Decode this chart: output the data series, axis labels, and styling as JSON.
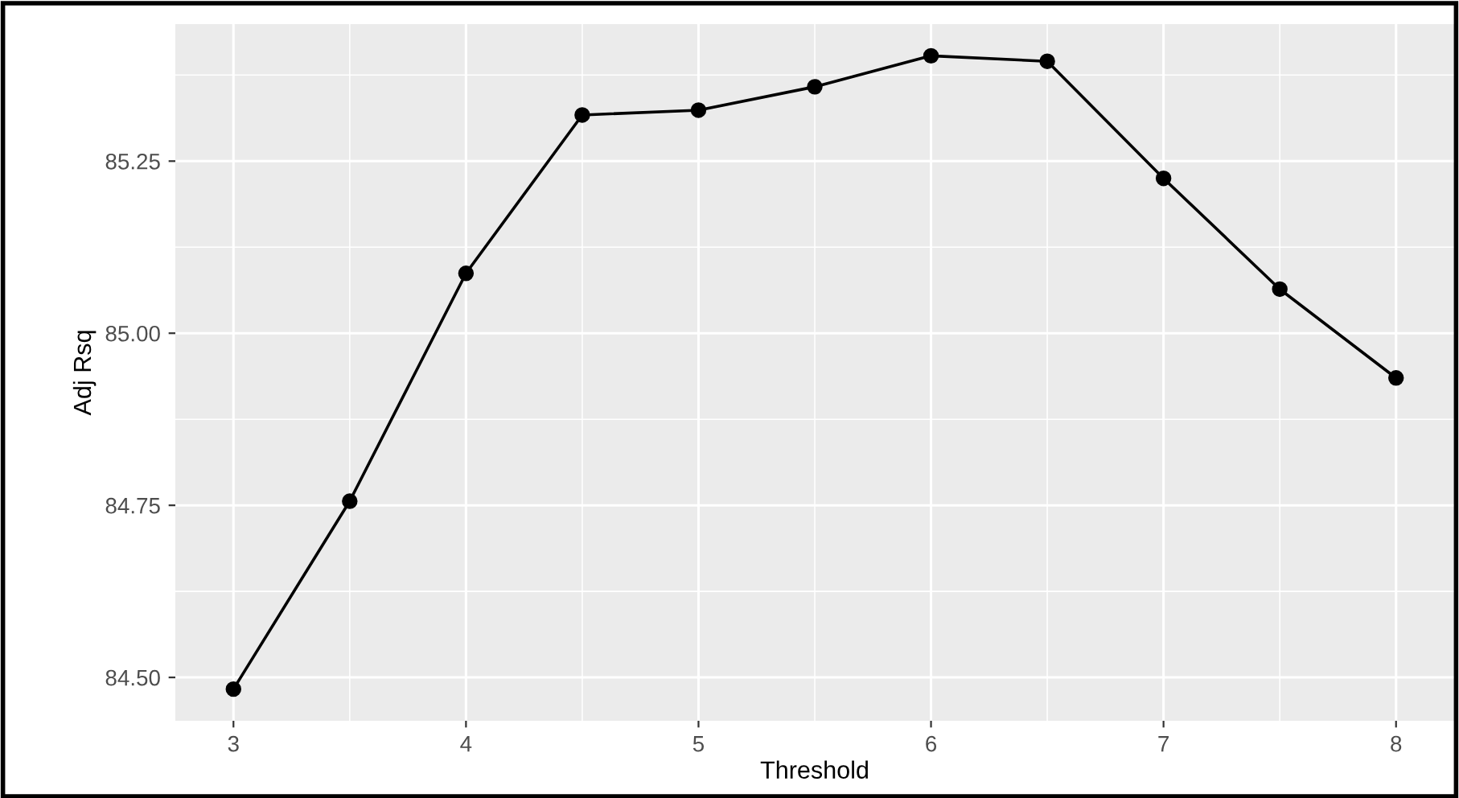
{
  "chart_data": {
    "type": "line",
    "xlabel": "Threshold",
    "ylabel": "Adj Rsq",
    "x": [
      3,
      3.5,
      4,
      4.5,
      5,
      5.5,
      6,
      6.5,
      7,
      7.5,
      8
    ],
    "series": [
      {
        "color": "#000000",
        "values": [
          84.483,
          84.756,
          85.087,
          85.317,
          85.324,
          85.358,
          85.403,
          85.395,
          85.225,
          85.064,
          84.935
        ]
      }
    ],
    "xlim": [
      2.75,
      8.25
    ],
    "ylim": [
      84.437,
      85.449
    ],
    "xticks": [
      3,
      {
        "value": 3.5,
        "label": null
      },
      4,
      {
        "value": 4.5,
        "label": null
      },
      5,
      {
        "value": 5.5,
        "label": null
      },
      6,
      {
        "value": 6.5,
        "label": null
      },
      7,
      {
        "value": 7.5,
        "label": null
      },
      8
    ],
    "yticks": [
      {
        "value": 84.5,
        "label": "84.50"
      },
      {
        "value": 84.625,
        "label": null
      },
      {
        "value": 84.75,
        "label": "84.75"
      },
      {
        "value": 84.875,
        "label": null
      },
      {
        "value": 85.0,
        "label": "85.00"
      },
      {
        "value": 85.125,
        "label": null
      },
      {
        "value": 85.25,
        "label": "85.25"
      },
      {
        "value": 85.375,
        "label": null
      }
    ],
    "grid": true,
    "marker": "circle",
    "line_style": "solid"
  }
}
